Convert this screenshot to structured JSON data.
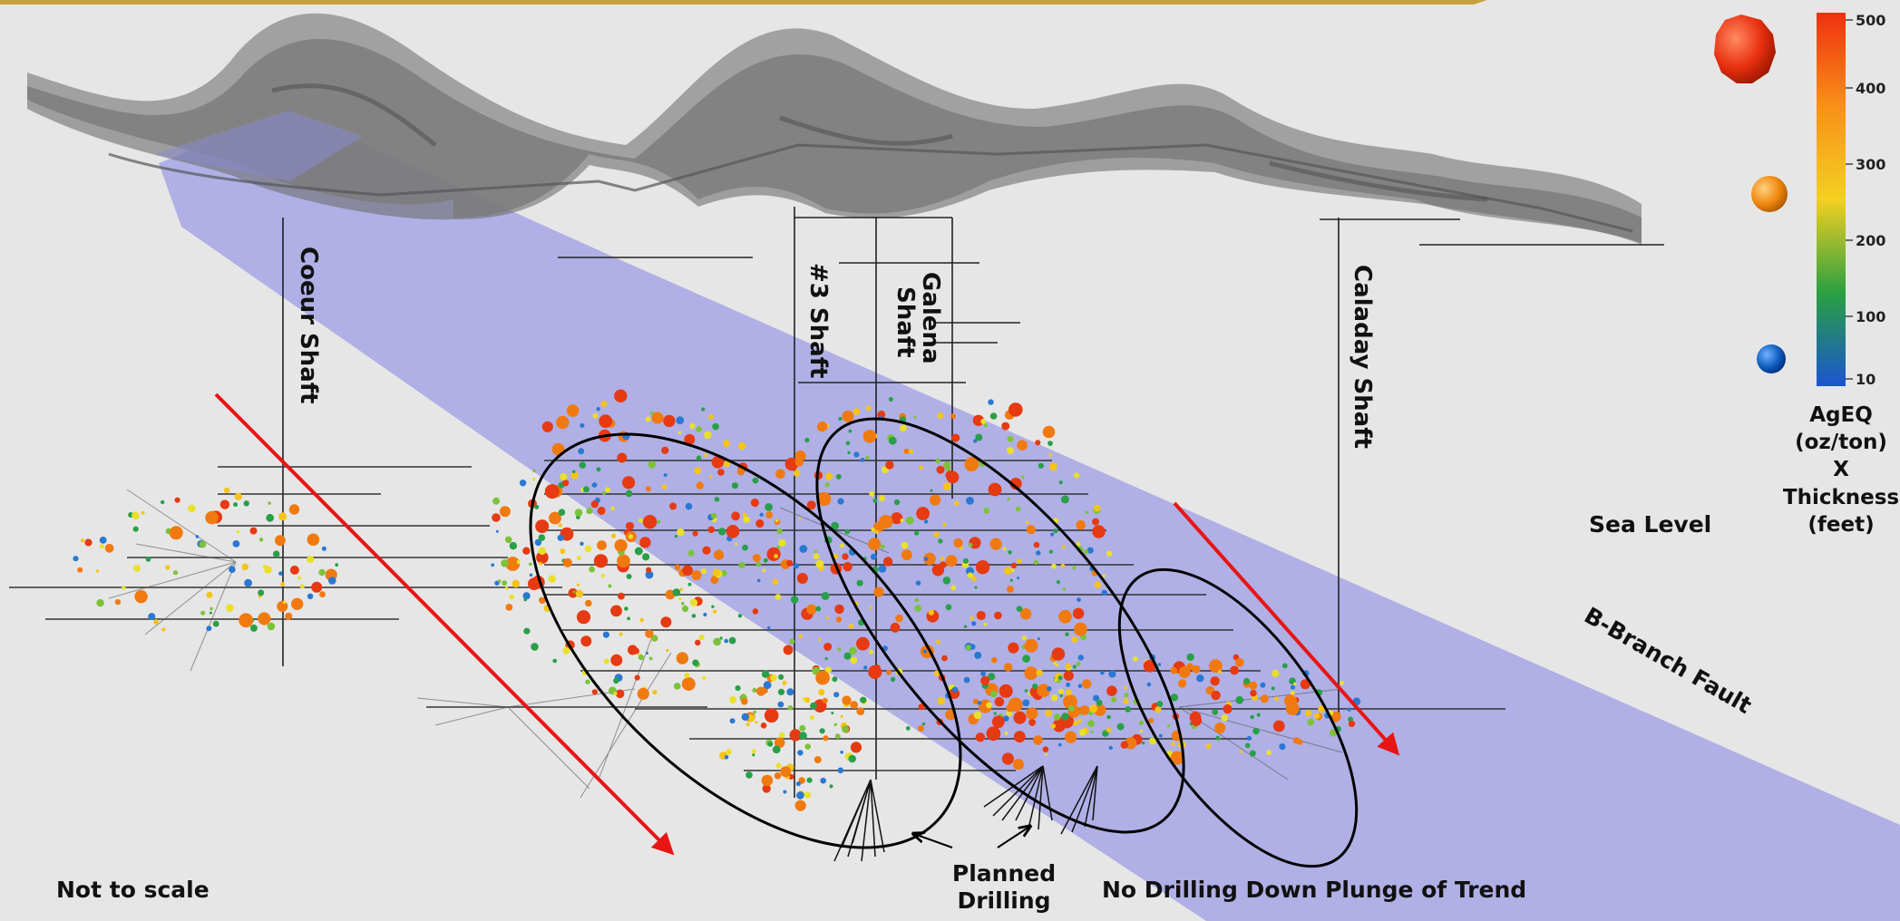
{
  "labels": {
    "coeur_shaft": "Coeur Shaft",
    "shaft3": "#3 Shaft",
    "galena_line1": "Galena",
    "galena_line2": "Shaft",
    "caladay_shaft": "Caladay Shaft",
    "sea_level": "Sea Level",
    "b_branch_fault": "B-Branch Fault",
    "not_to_scale": "Not to scale",
    "planned_line1": "Planned",
    "planned_line2": "Drilling",
    "no_drilling": "No Drilling Down Plunge of Trend"
  },
  "legend": {
    "ticks": [
      "500",
      "400",
      "300",
      "200",
      "100",
      "10"
    ],
    "title_lines": [
      "AgEQ",
      "(oz/ton)",
      "X",
      "Thickness",
      "(feet)"
    ],
    "marker_colors": [
      "#e03010",
      "#f08a10",
      "#1060c0"
    ]
  },
  "colors": {
    "fault_plane": "#a8a8e6",
    "arrow": "#e81515",
    "background": "#e6e6e6",
    "top_bar": "#c8a040"
  }
}
